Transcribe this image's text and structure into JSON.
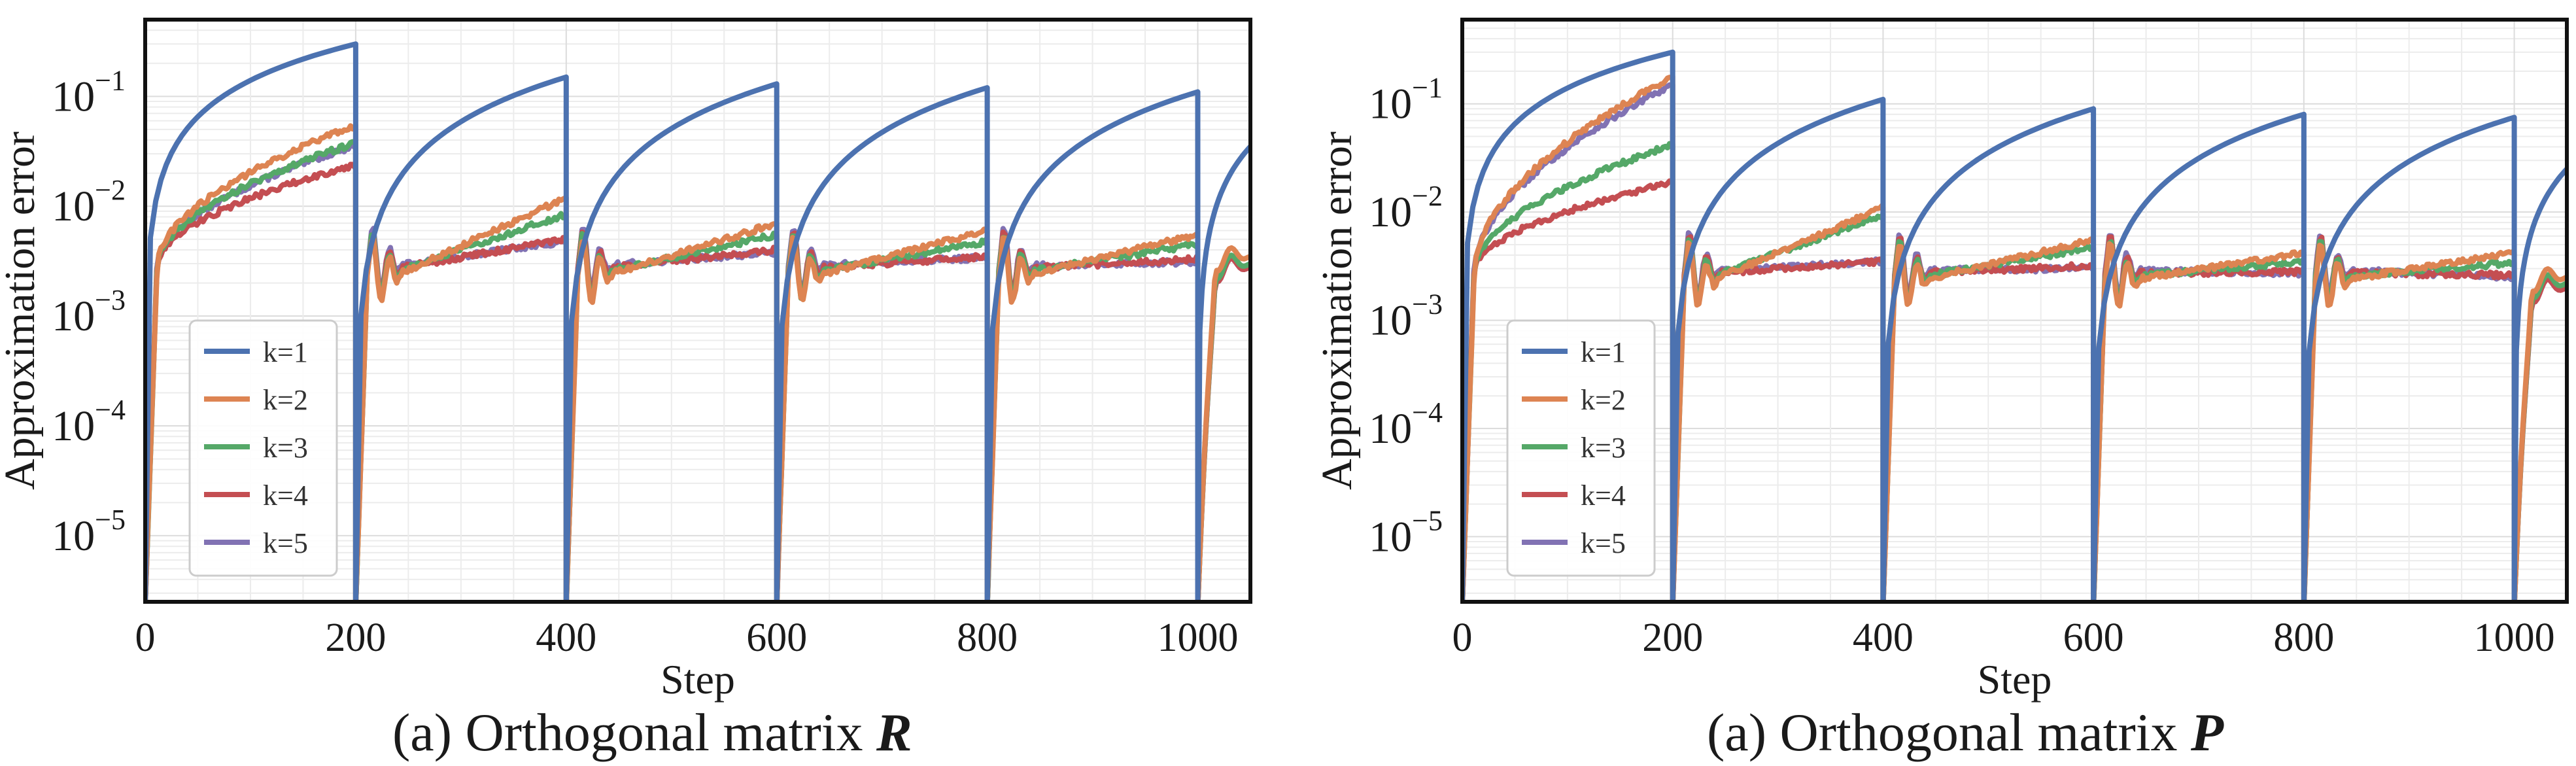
{
  "colors": [
    "#4c72b0",
    "#dd8452",
    "#55a868",
    "#c44e52",
    "#8172b3"
  ],
  "chart_data": [
    {
      "type": "line",
      "title": "",
      "caption_text": "(a) Orthogonal matrix",
      "caption_symbol": "R",
      "xlabel": "Step",
      "ylabel": "Approximation error",
      "yscale": "log",
      "xlim": [
        0,
        1050
      ],
      "ylim": [
        2.5e-06,
        0.5
      ],
      "xticks": [
        0,
        200,
        400,
        600,
        800,
        1000
      ],
      "yticks": [
        {
          "value": 1e-05,
          "base": "10",
          "exp": "−5"
        },
        {
          "value": 0.0001,
          "base": "10",
          "exp": "−4"
        },
        {
          "value": 0.001,
          "base": "10",
          "exp": "−3"
        },
        {
          "value": 0.01,
          "base": "10",
          "exp": "−2"
        },
        {
          "value": 0.1,
          "base": "10",
          "exp": "−1"
        }
      ],
      "grid": true,
      "legend_position": "lower-left",
      "series": [
        {
          "name": "k=1",
          "end_values": [
            0.3,
            0.15,
            0.13,
            0.12,
            0.11
          ],
          "tail_end": 0.035
        },
        {
          "name": "k=2",
          "end_values": [
            0.055,
            0.012,
            0.007,
            0.006,
            0.0055
          ],
          "tail_end": 0.0035
        },
        {
          "name": "k=3",
          "end_values": [
            0.038,
            0.0085,
            0.0055,
            0.0048,
            0.0045
          ],
          "tail_end": 0.003
        },
        {
          "name": "k=4",
          "end_values": [
            0.024,
            0.005,
            0.004,
            0.0035,
            0.0033
          ],
          "tail_end": 0.0028
        },
        {
          "name": "k=5",
          "end_values": [
            0.036,
            0.0048,
            0.0038,
            0.0034,
            0.0031
          ],
          "tail_end": 0.0028
        }
      ]
    },
    {
      "type": "line",
      "title": "",
      "caption_text": "(a) Orthogonal matrix",
      "caption_symbol": "P",
      "xlabel": "Step",
      "ylabel": "Approximation error",
      "yscale": "log",
      "xlim": [
        0,
        1050
      ],
      "ylim": [
        2.5e-06,
        0.6
      ],
      "xticks": [
        0,
        200,
        400,
        600,
        800,
        1000
      ],
      "yticks": [
        {
          "value": 1e-05,
          "base": "10",
          "exp": "−5"
        },
        {
          "value": 0.0001,
          "base": "10",
          "exp": "−4"
        },
        {
          "value": 0.001,
          "base": "10",
          "exp": "−3"
        },
        {
          "value": 0.01,
          "base": "10",
          "exp": "−2"
        },
        {
          "value": 0.1,
          "base": "10",
          "exp": "−1"
        }
      ],
      "grid": true,
      "legend_position": "lower-left",
      "series": [
        {
          "name": "k=1",
          "end_values": [
            0.3,
            0.11,
            0.09,
            0.08,
            0.075
          ],
          "tail_end": 0.025
        },
        {
          "name": "k=2",
          "end_values": [
            0.18,
            0.011,
            0.0055,
            0.0042,
            0.0042
          ],
          "tail_end": 0.0025
        },
        {
          "name": "k=3",
          "end_values": [
            0.042,
            0.0095,
            0.0047,
            0.0035,
            0.0034
          ],
          "tail_end": 0.0022
        },
        {
          "name": "k=4",
          "end_values": [
            0.019,
            0.0035,
            0.0032,
            0.0028,
            0.0026
          ],
          "tail_end": 0.002
        },
        {
          "name": "k=5",
          "end_values": [
            0.15,
            0.0035,
            0.003,
            0.0027,
            0.0025
          ],
          "tail_end": 0.002
        }
      ]
    }
  ]
}
